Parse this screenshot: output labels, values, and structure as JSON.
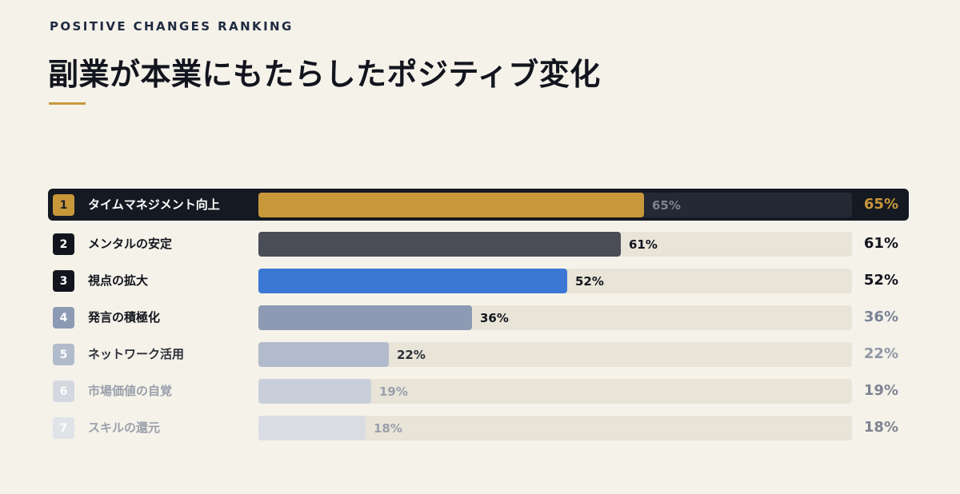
{
  "header": {
    "eyebrow": "POSITIVE CHANGES RANKING",
    "title": "副業が本業にもたらしたポジティブ変化"
  },
  "chart_data": {
    "type": "bar",
    "orientation": "horizontal",
    "title": "副業が本業にもたらしたポジティブ変化",
    "xlim": [
      0,
      100
    ],
    "unit": "%",
    "grid": false,
    "highlighted_rank": 1,
    "items": [
      {
        "rank": "1",
        "label": "タイムマネジメント向上",
        "value": 65,
        "display": "65%",
        "bar_color": "#c8973a"
      },
      {
        "rank": "2",
        "label": "メンタルの安定",
        "value": 61,
        "display": "61%",
        "bar_color": "#4a4d57"
      },
      {
        "rank": "3",
        "label": "視点の拡大",
        "value": 52,
        "display": "52%",
        "bar_color": "#3b78d4"
      },
      {
        "rank": "4",
        "label": "発言の積極化",
        "value": 36,
        "display": "36%",
        "bar_color": "#8c9ab3"
      },
      {
        "rank": "5",
        "label": "ネットワーク活用",
        "value": 22,
        "display": "22%",
        "bar_color": "#b1bbcb"
      },
      {
        "rank": "6",
        "label": "市場価値の自覚",
        "value": 19,
        "display": "19%",
        "bar_color": "#c9cfda"
      },
      {
        "rank": "7",
        "label": "スキルの還元",
        "value": 18,
        "display": "18%",
        "bar_color": "#d9dde3"
      }
    ]
  },
  "colors": {
    "background": "#f5f2ea",
    "accent": "#c69a3c",
    "highlight_row": "#151922",
    "track": "#e8e4d8",
    "highlight_track": "#252935"
  }
}
